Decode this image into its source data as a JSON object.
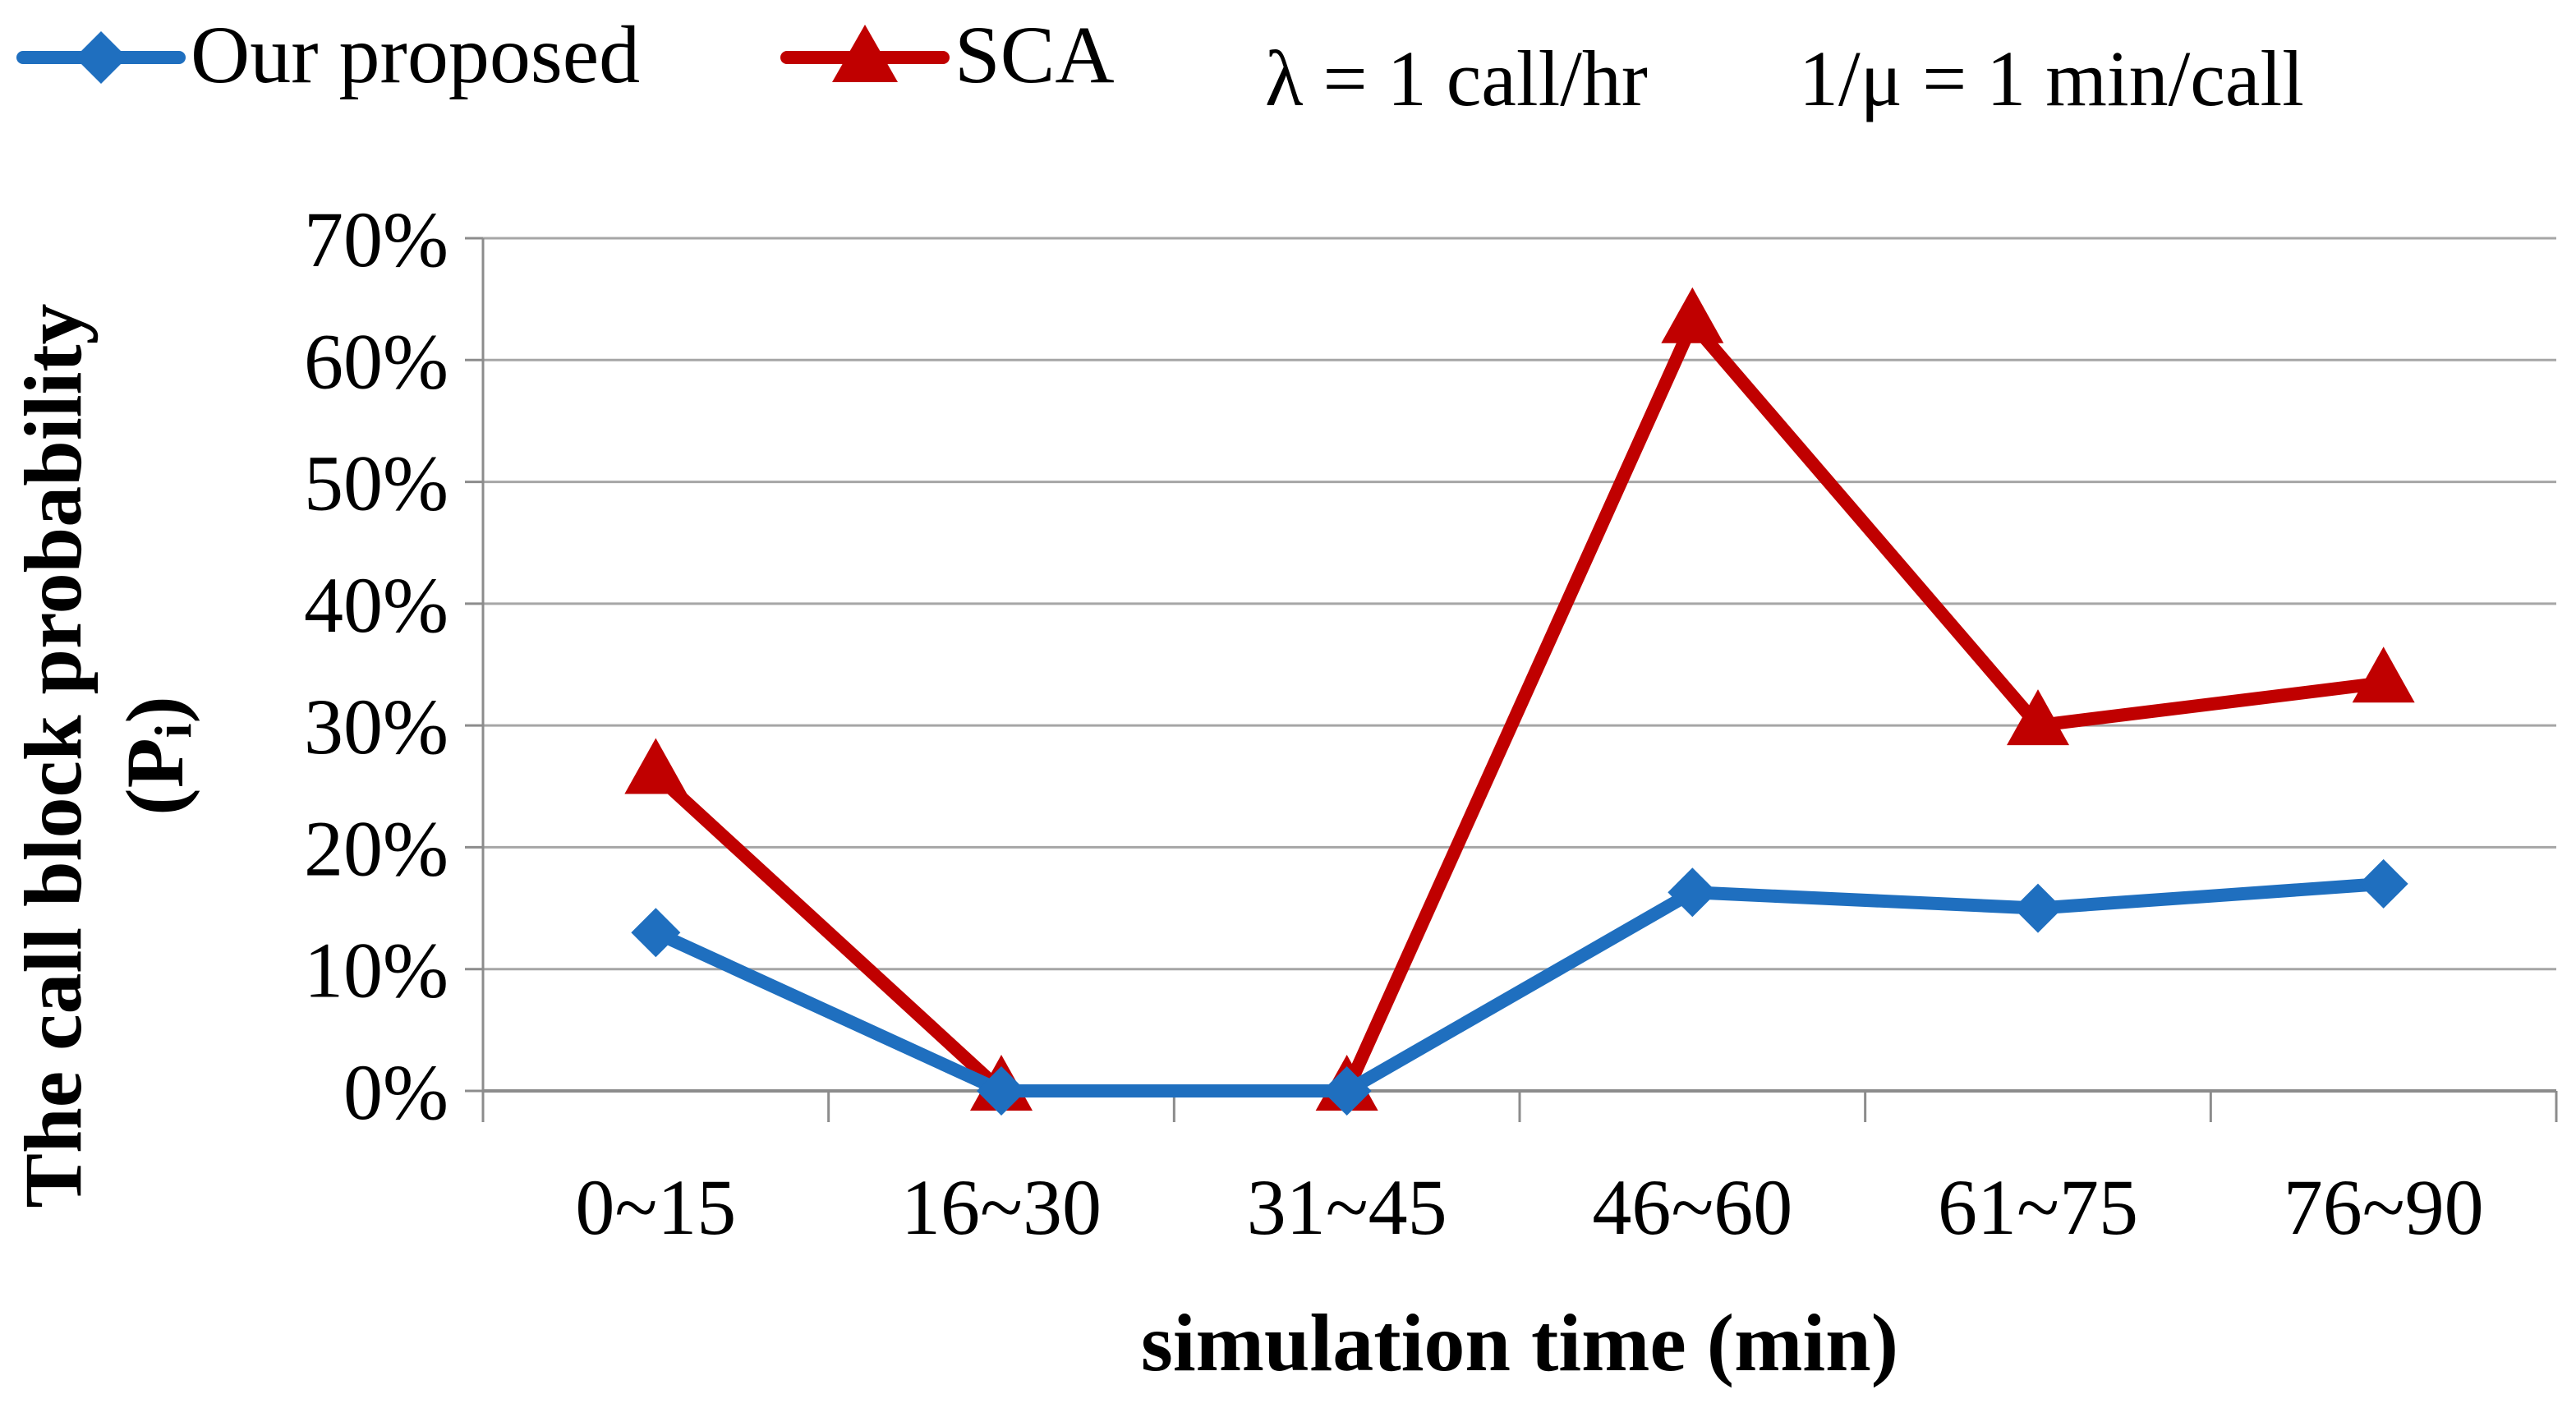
{
  "chart_data": {
    "type": "line",
    "title": "",
    "xlabel": "simulation  time (min)",
    "ylabel_line1": "The  call block probability",
    "ylabel_line2_base": "(P",
    "ylabel_line2_sub": "i",
    "ylabel_line2_end": ")",
    "categories": [
      "0~15",
      "16~30",
      "31~45",
      "46~60",
      "61~75",
      "76~90"
    ],
    "ylim": [
      0,
      70
    ],
    "yticks": [
      0,
      10,
      20,
      30,
      40,
      50,
      60,
      70
    ],
    "ytick_labels": [
      "0%",
      "10%",
      "20%",
      "30%",
      "40%",
      "50%",
      "60%",
      "70%"
    ],
    "grid": true,
    "legend_position": "top-left",
    "series": [
      {
        "name": "Our proposed",
        "color": "#1f6fbf",
        "marker": "diamond",
        "values": [
          13,
          0,
          0,
          16.3,
          15,
          17
        ]
      },
      {
        "name": "SCA",
        "color": "#c00000",
        "marker": "triangle",
        "values": [
          26,
          0,
          0,
          63,
          30,
          33.5
        ]
      }
    ],
    "annotation_lambda": "λ = 1 call/hr",
    "annotation_mu": "1/μ = 1 min/call"
  }
}
